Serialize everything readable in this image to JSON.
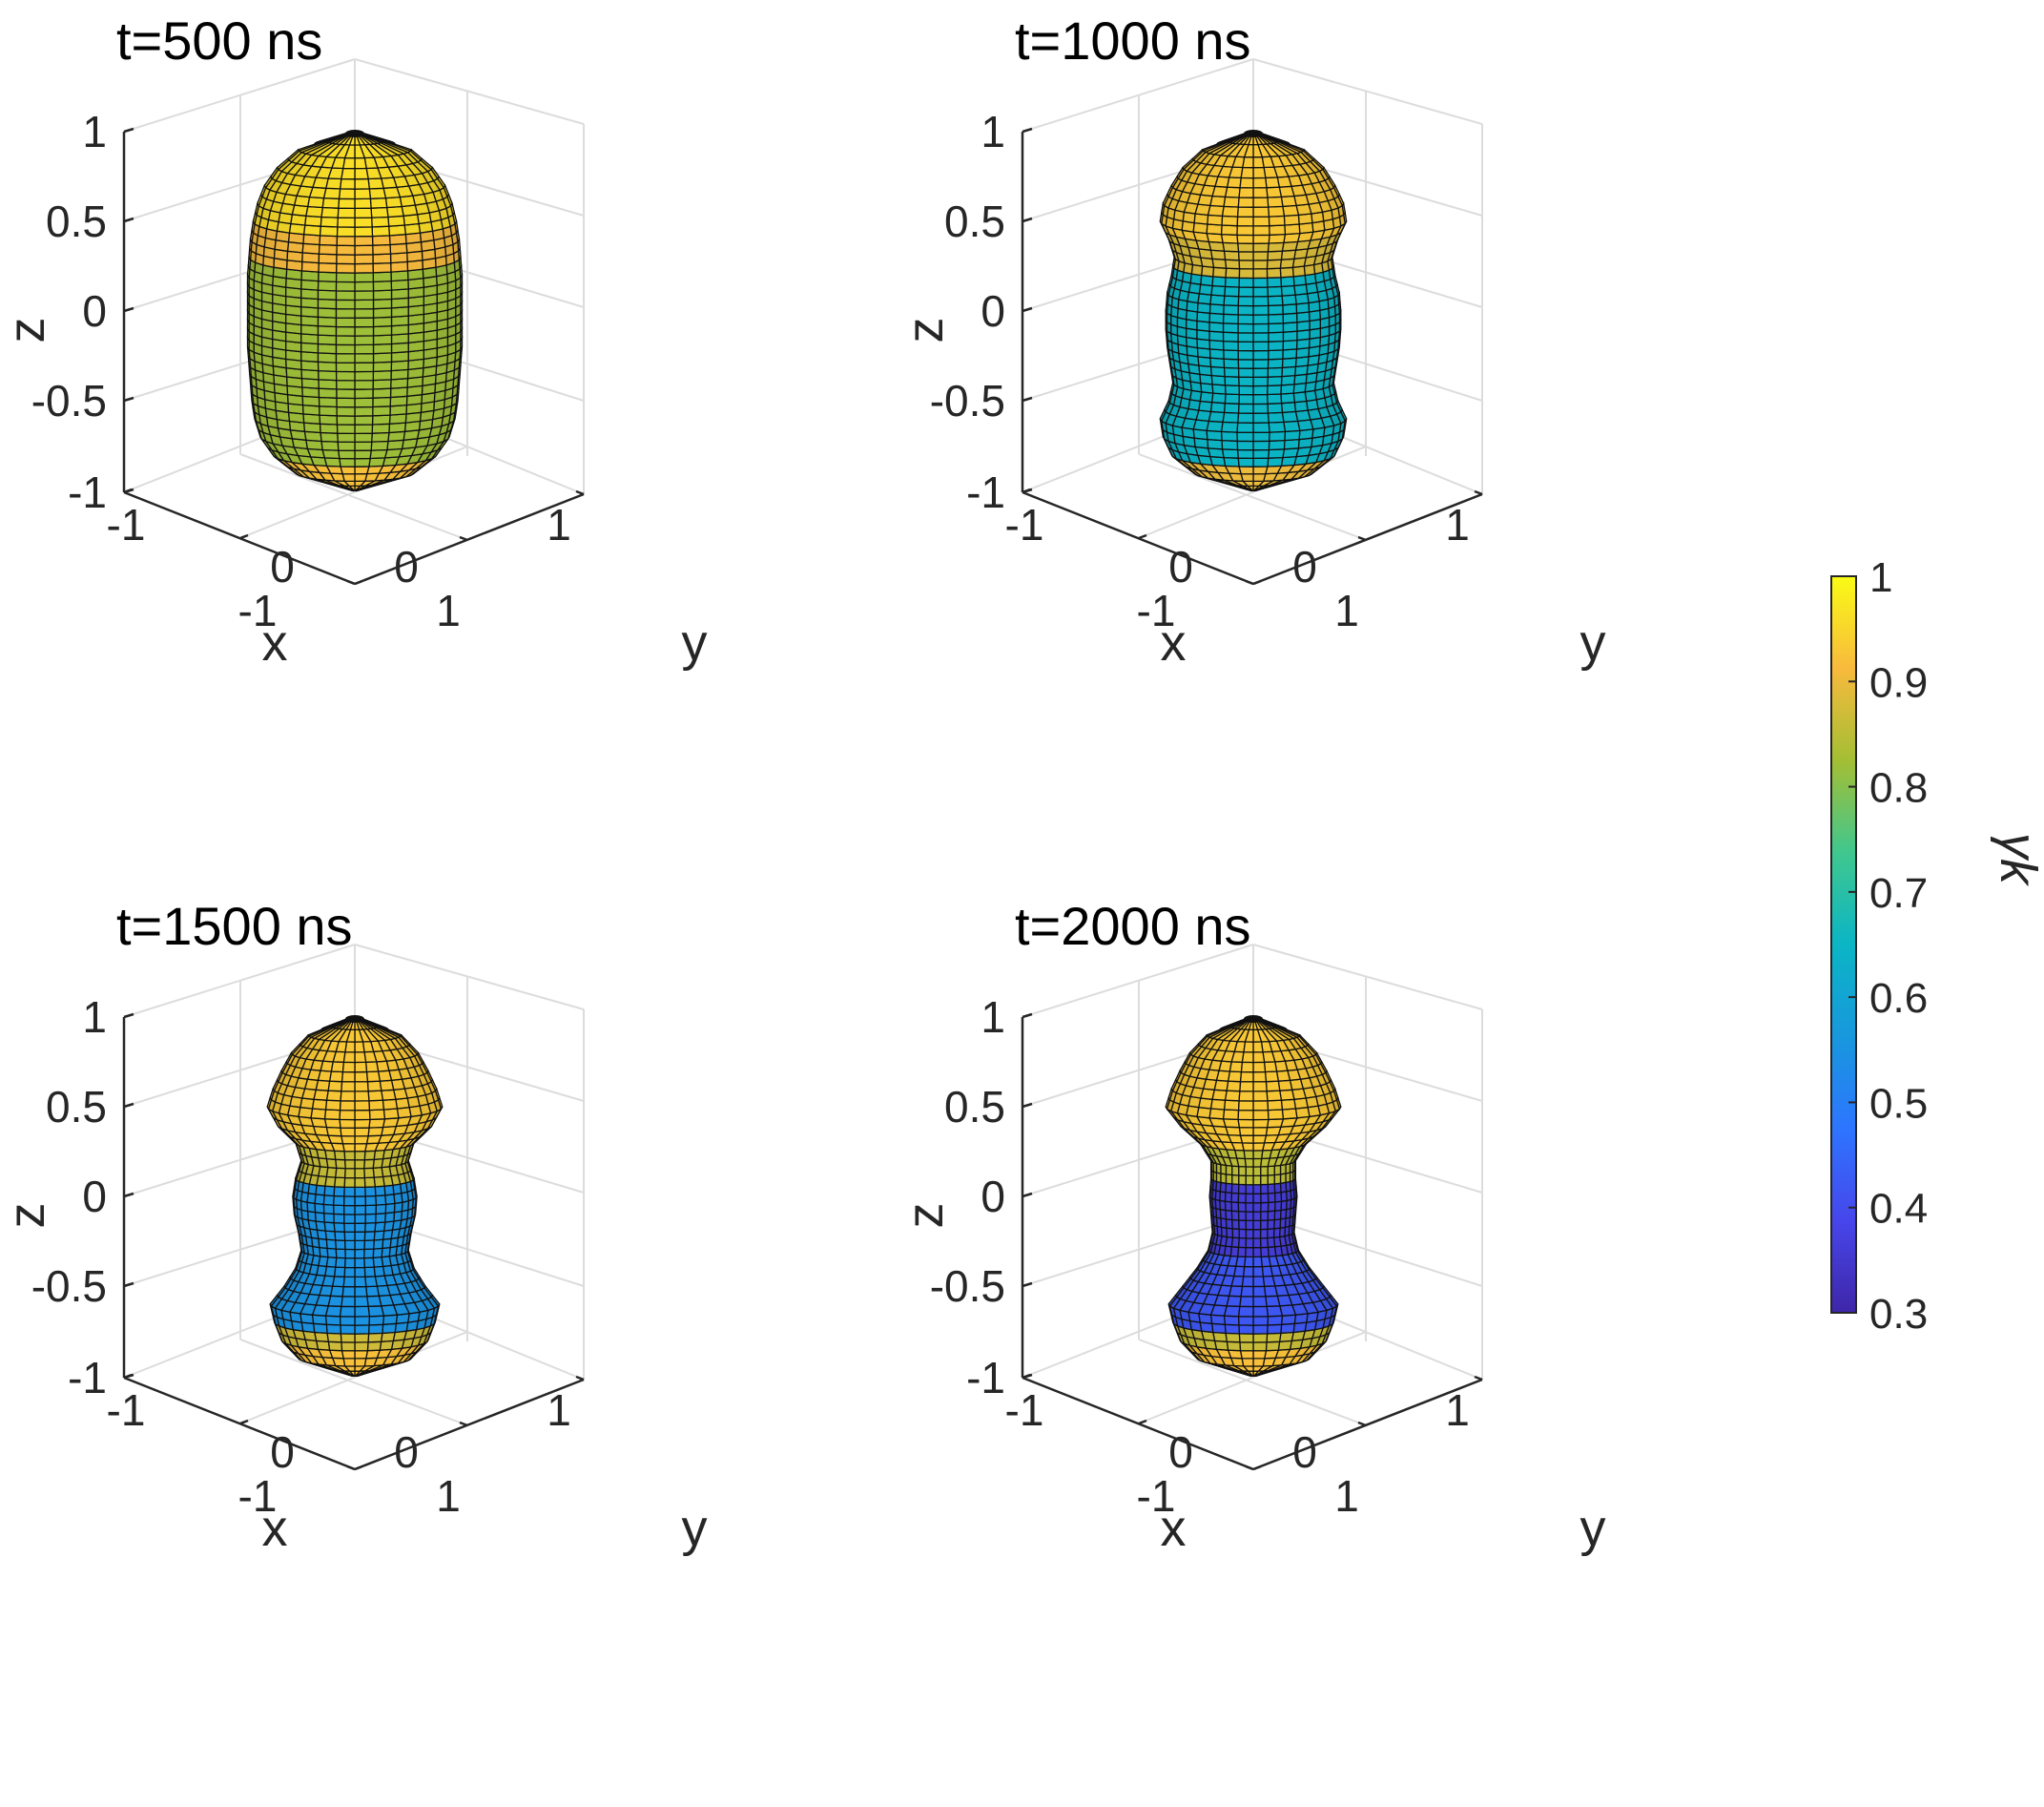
{
  "chart_data": [
    {
      "type": "3d-surface",
      "title": "t=500 ns",
      "xlabel": "x",
      "ylabel": "y",
      "zlabel": "z",
      "xlim": [
        -1,
        1
      ],
      "ylim": [
        -1,
        1
      ],
      "zlim": [
        -1,
        1
      ],
      "x_ticks": [
        "-1",
        "0",
        "1"
      ],
      "y_ticks": [
        "-1",
        "0",
        "1"
      ],
      "z_ticks": [
        "-1",
        "-0.5",
        "0",
        "0.5",
        "1"
      ],
      "profile": {
        "z": [
          -1.0,
          -0.9,
          -0.8,
          -0.7,
          -0.6,
          -0.5,
          -0.4,
          -0.3,
          -0.2,
          -0.1,
          0.0,
          0.1,
          0.2,
          0.3,
          0.4,
          0.5,
          0.6,
          0.7,
          0.8,
          0.9,
          1.0
        ],
        "radius": [
          0.02,
          0.42,
          0.58,
          0.67,
          0.71,
          0.73,
          0.74,
          0.75,
          0.76,
          0.76,
          0.76,
          0.76,
          0.76,
          0.75,
          0.74,
          0.72,
          0.69,
          0.64,
          0.55,
          0.4,
          0.02
        ]
      },
      "bands": [
        {
          "z_from": -1.0,
          "z_to": -0.78,
          "value": 0.92
        },
        {
          "z_from": -0.78,
          "z_to": 0.3,
          "value": 0.82
        },
        {
          "z_from": 0.3,
          "z_to": 0.5,
          "value": 0.91
        },
        {
          "z_from": 0.5,
          "z_to": 1.0,
          "value": 0.96
        }
      ]
    },
    {
      "type": "3d-surface",
      "title": "t=1000 ns",
      "xlabel": "x",
      "ylabel": "y",
      "zlabel": "z",
      "xlim": [
        -1,
        1
      ],
      "ylim": [
        -1,
        1
      ],
      "zlim": [
        -1,
        1
      ],
      "x_ticks": [
        "-1",
        "0",
        "1"
      ],
      "y_ticks": [
        "-1",
        "0",
        "1"
      ],
      "z_ticks": [
        "-1",
        "-0.5",
        "0",
        "0.5",
        "1"
      ],
      "profile": {
        "z": [
          -1.0,
          -0.9,
          -0.8,
          -0.7,
          -0.6,
          -0.5,
          -0.4,
          -0.3,
          -0.2,
          -0.1,
          0.0,
          0.1,
          0.2,
          0.3,
          0.4,
          0.5,
          0.6,
          0.7,
          0.8,
          0.9,
          1.0
        ],
        "radius": [
          0.02,
          0.42,
          0.58,
          0.64,
          0.66,
          0.6,
          0.57,
          0.59,
          0.61,
          0.62,
          0.62,
          0.61,
          0.58,
          0.56,
          0.6,
          0.66,
          0.64,
          0.58,
          0.5,
          0.36,
          0.02
        ]
      },
      "bands": [
        {
          "z_from": -1.0,
          "z_to": -0.78,
          "value": 0.9
        },
        {
          "z_from": -0.78,
          "z_to": 0.27,
          "value": 0.65
        },
        {
          "z_from": 0.27,
          "z_to": 0.45,
          "value": 0.88
        },
        {
          "z_from": 0.45,
          "z_to": 1.0,
          "value": 0.93
        }
      ]
    },
    {
      "type": "3d-surface",
      "title": "t=1500 ns",
      "xlabel": "x",
      "ylabel": "y",
      "zlabel": "z",
      "xlim": [
        -1,
        1
      ],
      "ylim": [
        -1,
        1
      ],
      "zlim": [
        -1,
        1
      ],
      "x_ticks": [
        "-1",
        "0",
        "1"
      ],
      "y_ticks": [
        "-1",
        "0",
        "1"
      ],
      "z_ticks": [
        "-1",
        "-0.5",
        "0",
        "0.5",
        "1"
      ],
      "profile": {
        "z": [
          -1.0,
          -0.9,
          -0.8,
          -0.7,
          -0.6,
          -0.5,
          -0.4,
          -0.3,
          -0.2,
          -0.1,
          0.0,
          0.1,
          0.2,
          0.3,
          0.4,
          0.5,
          0.6,
          0.7,
          0.8,
          0.9,
          1.0
        ],
        "radius": [
          0.02,
          0.4,
          0.52,
          0.57,
          0.6,
          0.5,
          0.42,
          0.38,
          0.4,
          0.43,
          0.44,
          0.42,
          0.38,
          0.42,
          0.55,
          0.62,
          0.58,
          0.52,
          0.45,
          0.33,
          0.02
        ]
      },
      "bands": [
        {
          "z_from": -1.0,
          "z_to": -0.82,
          "value": 0.92
        },
        {
          "z_from": -0.82,
          "z_to": -0.72,
          "value": 0.87
        },
        {
          "z_from": -0.72,
          "z_to": 0.1,
          "value": 0.55
        },
        {
          "z_from": 0.1,
          "z_to": 0.32,
          "value": 0.86
        },
        {
          "z_from": 0.32,
          "z_to": 1.0,
          "value": 0.93
        }
      ]
    },
    {
      "type": "3d-surface",
      "title": "t=2000 ns",
      "xlabel": "x",
      "ylabel": "y",
      "zlabel": "z",
      "xlim": [
        -1,
        1
      ],
      "ylim": [
        -1,
        1
      ],
      "zlim": [
        -1,
        1
      ],
      "x_ticks": [
        "-1",
        "0",
        "1"
      ],
      "y_ticks": [
        "-1",
        "0",
        "1"
      ],
      "z_ticks": [
        "-1",
        "-0.5",
        "0",
        "0.5",
        "1"
      ],
      "profile": {
        "z": [
          -1.0,
          -0.9,
          -0.8,
          -0.7,
          -0.6,
          -0.5,
          -0.4,
          -0.3,
          -0.2,
          -0.1,
          0.0,
          0.1,
          0.2,
          0.3,
          0.4,
          0.5,
          0.6,
          0.7,
          0.8,
          0.9,
          1.0
        ],
        "radius": [
          0.02,
          0.4,
          0.52,
          0.57,
          0.6,
          0.5,
          0.4,
          0.32,
          0.29,
          0.3,
          0.31,
          0.3,
          0.3,
          0.38,
          0.52,
          0.62,
          0.58,
          0.52,
          0.45,
          0.33,
          0.02
        ]
      },
      "bands": [
        {
          "z_from": -1.0,
          "z_to": -0.82,
          "value": 0.92
        },
        {
          "z_from": -0.82,
          "z_to": -0.72,
          "value": 0.86
        },
        {
          "z_from": -0.72,
          "z_to": -0.32,
          "value": 0.42
        },
        {
          "z_from": -0.32,
          "z_to": 0.1,
          "value": 0.36
        },
        {
          "z_from": 0.1,
          "z_to": 0.32,
          "value": 0.85
        },
        {
          "z_from": 0.32,
          "z_to": 1.0,
          "value": 0.93
        }
      ]
    }
  ],
  "colorbar": {
    "label": "γk",
    "range": [
      0.3,
      1
    ],
    "ticks": [
      "1",
      "0.9",
      "0.8",
      "0.7",
      "0.6",
      "0.5",
      "0.4",
      "0.3"
    ],
    "colormap": "parula"
  }
}
